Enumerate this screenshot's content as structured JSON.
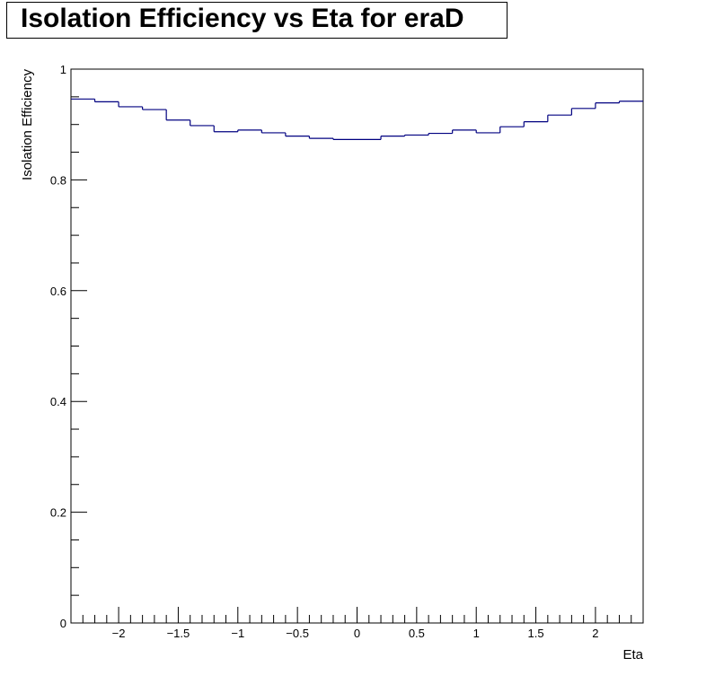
{
  "chart_data": {
    "type": "line",
    "title": "Isolation Efficiency vs Eta for eraD",
    "xlabel": "Eta",
    "ylabel": "Isolation Efficiency",
    "xlim": [
      -2.4,
      2.4
    ],
    "ylim": [
      0,
      1
    ],
    "x_ticks": [
      "−2",
      "−1.5",
      "−1",
      "−0.5",
      "0",
      "0.5",
      "1",
      "1.5",
      "2"
    ],
    "y_ticks": [
      "0",
      "0.2",
      "0.4",
      "0.6",
      "0.8",
      "1"
    ],
    "line_color": "#000080",
    "bin_edges": [
      -2.4,
      -2.2,
      -2.0,
      -1.8,
      -1.6,
      -1.4,
      -1.2,
      -1.0,
      -0.8,
      -0.6,
      -0.4,
      -0.2,
      0.0,
      0.2,
      0.4,
      0.6,
      0.8,
      1.0,
      1.2,
      1.4,
      1.6,
      1.8,
      2.0,
      2.2,
      2.4
    ],
    "series": [
      {
        "values": [
          0.946,
          0.941,
          0.932,
          0.927,
          0.908,
          0.898,
          0.887,
          0.89,
          0.885,
          0.879,
          0.875,
          0.873,
          0.873,
          0.879,
          0.881,
          0.884,
          0.89,
          0.885,
          0.896,
          0.905,
          0.917,
          0.929,
          0.939,
          0.942
        ]
      }
    ]
  }
}
